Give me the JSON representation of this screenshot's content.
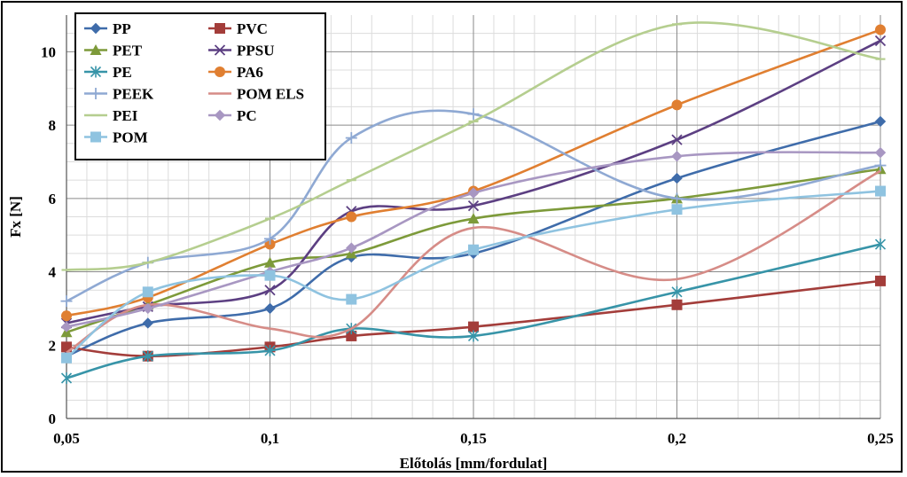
{
  "chart_data": {
    "type": "line",
    "title": "",
    "xlabel": "Előtolás [mm/fordulat]",
    "ylabel": "Fx [N]",
    "xlim": [
      0.05,
      0.25
    ],
    "ylim": [
      0,
      11
    ],
    "xticks": [
      0.05,
      0.1,
      0.15,
      0.2,
      0.25
    ],
    "xtick_labels": [
      "0,05",
      "0,1",
      "0,15",
      "0,2",
      "0,25"
    ],
    "yticks": [
      0,
      2,
      4,
      6,
      8,
      10
    ],
    "ytick_labels": [
      "0",
      "2",
      "4",
      "6",
      "8",
      "10"
    ],
    "grid": true,
    "minor_grid": true,
    "legend_position": "top-left",
    "x": [
      0.05,
      0.07,
      0.1,
      0.12,
      0.15,
      0.2,
      0.25
    ],
    "series": [
      {
        "name": "PP",
        "color": "#3F6CAA",
        "marker": "diamond",
        "values": [
          1.7,
          2.6,
          3.0,
          4.4,
          4.5,
          6.55,
          8.1
        ]
      },
      {
        "name": "PVC",
        "color": "#A33D3A",
        "marker": "square",
        "values": [
          1.95,
          1.7,
          1.95,
          2.25,
          2.5,
          3.1,
          3.75
        ]
      },
      {
        "name": "PET",
        "color": "#7D9A3A",
        "marker": "triangle",
        "values": [
          2.35,
          3.1,
          4.25,
          4.5,
          5.45,
          6.0,
          6.8
        ]
      },
      {
        "name": "PPSU",
        "color": "#5C3F82",
        "marker": "x",
        "values": [
          2.6,
          3.05,
          3.5,
          5.65,
          5.8,
          7.6,
          10.3
        ]
      },
      {
        "name": "PE",
        "color": "#3794A8",
        "marker": "asterisk",
        "values": [
          1.1,
          1.7,
          1.85,
          2.45,
          2.25,
          3.45,
          4.75
        ]
      },
      {
        "name": "PA6",
        "color": "#E07F31",
        "marker": "circle",
        "values": [
          2.8,
          3.3,
          4.75,
          5.5,
          6.2,
          8.55,
          10.6
        ]
      },
      {
        "name": "PEEK",
        "color": "#8FA9D3",
        "marker": "plus",
        "values": [
          3.2,
          4.25,
          4.9,
          7.65,
          8.3,
          6.0,
          6.9
        ]
      },
      {
        "name": "POM ELS",
        "color": "#D68C87",
        "marker": "none",
        "values": [
          1.8,
          3.1,
          2.45,
          2.45,
          5.2,
          3.8,
          6.75
        ]
      },
      {
        "name": "PEI",
        "color": "#B5CE8F",
        "marker": "dash",
        "values": [
          4.05,
          4.25,
          5.45,
          6.5,
          8.1,
          10.75,
          9.8
        ]
      },
      {
        "name": "PC",
        "color": "#A897C2",
        "marker": "diamond",
        "values": [
          2.5,
          3.0,
          4.0,
          4.65,
          6.15,
          7.15,
          7.25
        ]
      },
      {
        "name": "POM",
        "color": "#8FC3E0",
        "marker": "square",
        "values": [
          1.65,
          3.45,
          3.9,
          3.25,
          4.6,
          5.7,
          6.2
        ]
      }
    ]
  }
}
